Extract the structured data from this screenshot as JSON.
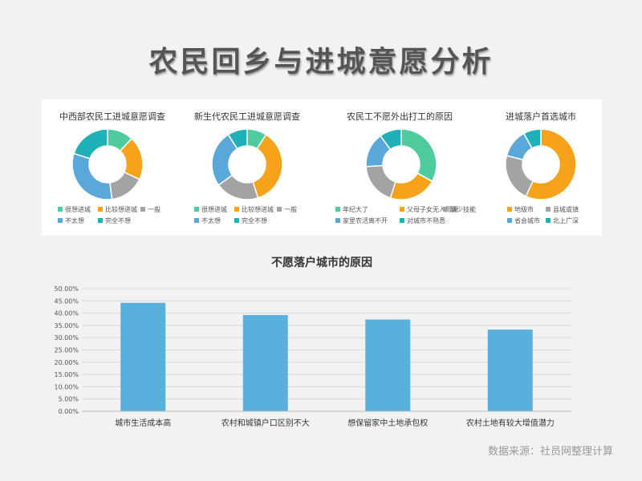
{
  "page_title": "农民回乡与进城意愿分析",
  "source": "数据来源：社员网整理计算",
  "colors": {
    "green": "#4fcc9e",
    "orange": "#f6a21a",
    "gray": "#a3a3a3",
    "blue": "#5aa7d9",
    "teal": "#1fb1b8",
    "bar": "#5ab0dc"
  },
  "chart_data": [
    {
      "type": "pie",
      "title": "中西部农民工进城意愿调查",
      "donut": true,
      "labels": [
        "很想进城",
        "比较想进城",
        "一般",
        "不太想",
        "完全不想"
      ],
      "values": [
        12,
        20,
        16,
        32,
        20
      ],
      "colors": [
        "#4fcc9e",
        "#f6a21a",
        "#a3a3a3",
        "#5aa7d9",
        "#1fb1b8"
      ]
    },
    {
      "type": "pie",
      "title": "新生代农民工进城意愿调查",
      "donut": true,
      "labels": [
        "很想进城",
        "比较想进城",
        "一般",
        "不太想",
        "完全不想"
      ],
      "values": [
        9,
        36,
        20,
        26,
        9
      ],
      "colors": [
        "#4fcc9e",
        "#f6a21a",
        "#a3a3a3",
        "#5aa7d9",
        "#1fb1b8"
      ]
    },
    {
      "type": "pie",
      "title": "农民工不愿外出打工的原因",
      "donut": true,
      "labels": [
        "年纪大了",
        "父母子女无人照顾",
        "缺少技能",
        "家里农活离不开",
        "对城市不熟悉"
      ],
      "values": [
        33,
        22,
        19,
        16,
        10
      ],
      "colors": [
        "#4fcc9e",
        "#f6a21a",
        "#a3a3a3",
        "#5aa7d9",
        "#1fb1b8"
      ]
    },
    {
      "type": "pie",
      "title": "进城落户首选城市",
      "donut": true,
      "labels": [
        "地级市",
        "县城或镇",
        "省会城市",
        "北上广深"
      ],
      "values": [
        57,
        22,
        13,
        8
      ],
      "colors": [
        "#f6a21a",
        "#a3a3a3",
        "#5aa7d9",
        "#1fb1b8"
      ]
    },
    {
      "type": "bar",
      "title": "不愿落户城市的原因",
      "categories": [
        "城市生活成本高",
        "农村和城镇户口区别不大",
        "想保留家中土地承包权",
        "农村土地有较大增值潜力"
      ],
      "values": [
        44.2,
        39.2,
        37.4,
        33.3
      ],
      "ylim": [
        0,
        50
      ],
      "ytick_step": 5,
      "ytick_labels": [
        "0.00%",
        "5.00%",
        "10.00%",
        "15.00%",
        "20.00%",
        "25.00%",
        "30.00%",
        "35.00%",
        "40.00%",
        "45.00%",
        "50.00%"
      ],
      "xlabel": "",
      "ylabel": "",
      "grid": true,
      "color": "#5ab0dc"
    }
  ]
}
